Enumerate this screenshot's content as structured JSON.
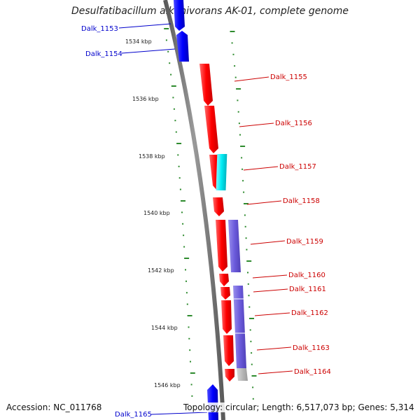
{
  "title": "Desulfatibacillum alkenivorans AK-01, complete genome",
  "footer": {
    "accession": "Accession: NC_011768",
    "summary": "Topology: circular; Length: 6,517,073 bp; Genes: 5,314"
  },
  "scale_labels": [
    "1534 kbp",
    "1536 kbp",
    "1538 kbp",
    "1540 kbp",
    "1542 kbp",
    "1544 kbp",
    "1546 kbp"
  ],
  "genes": [
    {
      "name": "Dalk_1153",
      "color": "#0000ee"
    },
    {
      "name": "Dalk_1154",
      "color": "#0000ee"
    },
    {
      "name": "Dalk_1155",
      "color": "#cc0000"
    },
    {
      "name": "Dalk_1156",
      "color": "#cc0000"
    },
    {
      "name": "Dalk_1157",
      "color": "#cc0000"
    },
    {
      "name": "Dalk_1158",
      "color": "#cc0000"
    },
    {
      "name": "Dalk_1159",
      "color": "#cc0000"
    },
    {
      "name": "Dalk_1160",
      "color": "#cc0000"
    },
    {
      "name": "Dalk_1161",
      "color": "#cc0000"
    },
    {
      "name": "Dalk_1162",
      "color": "#cc0000"
    },
    {
      "name": "Dalk_1163",
      "color": "#cc0000"
    },
    {
      "name": "Dalk_1164",
      "color": "#cc0000"
    },
    {
      "name": "Dalk_1165",
      "color": "#0000ee"
    }
  ],
  "feature_colors": {
    "forward_gene": "#0000ff",
    "reverse_gene": "#ff0000",
    "cyan_feature": "#00e5ee",
    "purple_feature": "#7060d8",
    "grey_feature": "#b0b0b0",
    "backbone": "#808080",
    "dots": "#2e8b2e"
  }
}
